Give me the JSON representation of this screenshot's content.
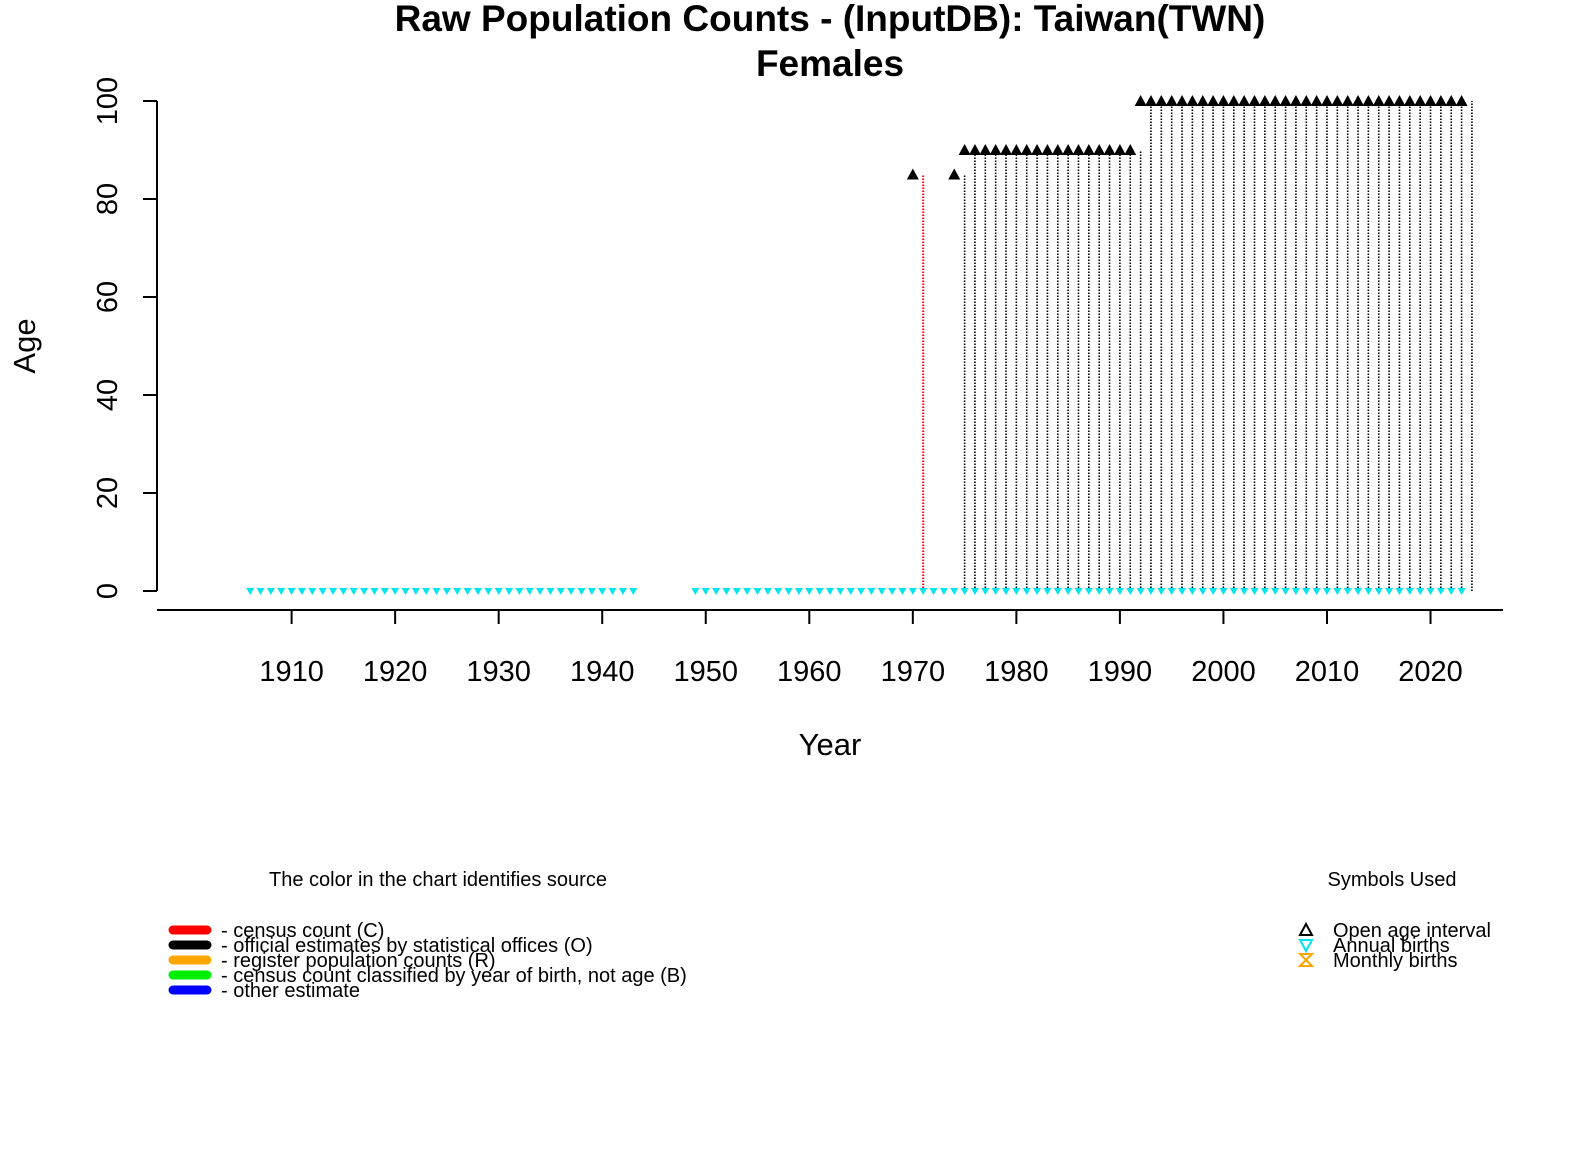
{
  "chart_data": {
    "type": "scatter",
    "title": "Raw Population Counts - (InputDB): Taiwan(TWN)",
    "subtitle": "Females",
    "xlabel": "Year",
    "ylabel": "Age",
    "xlim": [
      1897,
      2027
    ],
    "ylim": [
      0,
      100
    ],
    "x_ticks": [
      1910,
      1920,
      1930,
      1940,
      1950,
      1960,
      1970,
      1980,
      1990,
      2000,
      2010,
      2020
    ],
    "y_ticks": [
      0,
      20,
      40,
      60,
      80,
      100
    ],
    "grid": false,
    "sources": {
      "census_count": {
        "color": "#ff0000",
        "segments": [
          {
            "year": 1971,
            "age_from": 0,
            "age_to": 85
          }
        ]
      },
      "official_estimates": {
        "color": "#000000",
        "segments": [
          {
            "year_from": 1975,
            "year_to": 1975,
            "age_from": 0,
            "age_to": 85
          },
          {
            "year_from": 1976,
            "year_to": 1992,
            "age_from": 0,
            "age_to": 90
          },
          {
            "year_from": 1993,
            "year_to": 2024,
            "age_from": 0,
            "age_to": 100
          }
        ]
      }
    },
    "open_age_interval_points": [
      {
        "year_from": 1970,
        "year_to": 1970,
        "age": 85
      },
      {
        "year_from": 1974,
        "year_to": 1974,
        "age": 85
      },
      {
        "year_from": 1975,
        "year_to": 1991,
        "age": 90
      },
      {
        "year_from": 1992,
        "year_to": 2023,
        "age": 100
      }
    ],
    "annual_births_points": [
      {
        "year_from": 1906,
        "year_to": 1943,
        "age": 0
      },
      {
        "year_from": 1949,
        "year_to": 2023,
        "age": 0
      }
    ]
  },
  "legend_source": {
    "title": "The color in the chart identifies source",
    "items": [
      {
        "label": "- census count (C)",
        "color": "#ff0000"
      },
      {
        "label": "- official estimates by statistical offices (O)",
        "color": "#000000"
      },
      {
        "label": "- register population counts (R)",
        "color": "#ffa500"
      },
      {
        "label": "- census count classified by year of birth, not age (B)",
        "color": "#00ee00"
      },
      {
        "label": "- other estimate",
        "color": "#0000ff"
      }
    ]
  },
  "legend_symbols": {
    "title": "Symbols Used",
    "items": [
      {
        "label": "Open age interval",
        "symbol": "triangle-up-icon",
        "color": "#000000"
      },
      {
        "label": "Annual births",
        "symbol": "triangle-down-icon",
        "color": "#00e5ee"
      },
      {
        "label": "Monthly births",
        "symbol": "hourglass-icon",
        "color": "#ffa500"
      }
    ]
  }
}
